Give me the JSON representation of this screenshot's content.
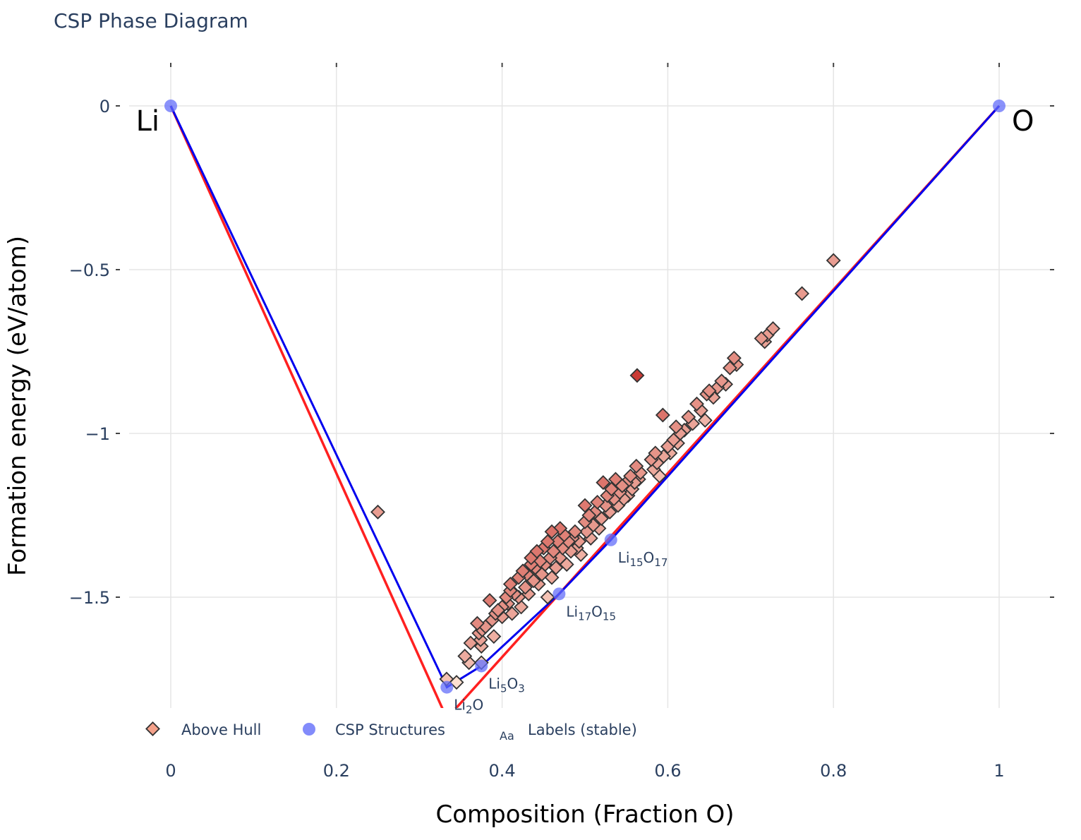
{
  "chart_data": {
    "type": "scatter",
    "title": "CSP Phase Diagram",
    "xlabel": "Composition (Fraction O)",
    "ylabel": "Formation energy (eV/atom)",
    "xlim": [
      -0.05,
      1.05
    ],
    "ylim": [
      -1.84,
      0.12
    ],
    "grid": true,
    "x_ticks": [
      0,
      0.2,
      0.4,
      0.6,
      0.8,
      1
    ],
    "x_tick_labels": [
      "0",
      "0.2",
      "0.4",
      "0.6",
      "0.8",
      "1"
    ],
    "y_ticks": [
      0,
      -0.5,
      -1,
      -1.5
    ],
    "y_tick_labels": [
      "0",
      "−0.5",
      "−1",
      "−1.5"
    ],
    "element_labels": [
      {
        "text": "Li",
        "x": 0,
        "y": 0,
        "side": "left"
      },
      {
        "text": "O",
        "x": 1,
        "y": 0,
        "side": "right"
      }
    ],
    "colors": {
      "hull_line": "#0000ee",
      "reference_line": "#ff2020",
      "csp_marker": "#636efa",
      "above_hull_light": "#fde0d0",
      "above_hull_dark": "#c0282a",
      "marker_outline": "#333333",
      "grid": "#e5e5e5",
      "text": "#2a3f5f"
    },
    "legend": {
      "position": "bottom-left",
      "items": [
        {
          "label": "Above Hull",
          "symbol": "diamond"
        },
        {
          "label": "CSP Structures",
          "symbol": "circle"
        },
        {
          "label": "Labels (stable)",
          "symbol": "Aa"
        }
      ]
    },
    "series": [
      {
        "name": "Hull (blue)",
        "kind": "line",
        "x": [
          0,
          0.3333,
          0.375,
          0.4688,
          0.5313,
          1
        ],
        "y": [
          0,
          -1.775,
          -1.71,
          -1.49,
          -1.325,
          0
        ]
      },
      {
        "name": "Reference hull (red)",
        "kind": "line",
        "x": [
          0,
          0.3333,
          1
        ],
        "y": [
          0,
          -1.87,
          0
        ]
      },
      {
        "name": "CSP Structures",
        "kind": "markers",
        "x": [
          0,
          0.3333,
          0.375,
          0.4688,
          0.5313,
          1
        ],
        "y": [
          0,
          -1.775,
          -1.71,
          -1.49,
          -1.325,
          0
        ]
      },
      {
        "name": "Labels (stable)",
        "kind": "text",
        "labels": [
          {
            "base": "Li",
            "sub1": "2",
            "mid": "O",
            "sub2": "",
            "x": 0.3333,
            "y": -1.775
          },
          {
            "base": "Li",
            "sub1": "5",
            "mid": "O",
            "sub2": "3",
            "x": 0.375,
            "y": -1.71
          },
          {
            "base": "Li",
            "sub1": "17",
            "mid": "O",
            "sub2": "15",
            "x": 0.4688,
            "y": -1.49
          },
          {
            "base": "Li",
            "sub1": "15",
            "mid": "O",
            "sub2": "17",
            "x": 0.5313,
            "y": -1.325
          }
        ]
      },
      {
        "name": "Above Hull",
        "kind": "diamonds",
        "points": [
          [
            0.25,
            -1.24
          ],
          [
            0.333,
            -1.75
          ],
          [
            0.345,
            -1.76
          ],
          [
            0.355,
            -1.68
          ],
          [
            0.36,
            -1.7
          ],
          [
            0.362,
            -1.64
          ],
          [
            0.37,
            -1.58
          ],
          [
            0.372,
            -1.61
          ],
          [
            0.374,
            -1.63
          ],
          [
            0.375,
            -1.65
          ],
          [
            0.376,
            -1.6
          ],
          [
            0.375,
            -1.7
          ],
          [
            0.38,
            -1.59
          ],
          [
            0.385,
            -1.51
          ],
          [
            0.388,
            -1.57
          ],
          [
            0.39,
            -1.62
          ],
          [
            0.392,
            -1.55
          ],
          [
            0.395,
            -1.54
          ],
          [
            0.4,
            -1.53
          ],
          [
            0.4,
            -1.56
          ],
          [
            0.405,
            -1.5
          ],
          [
            0.407,
            -1.52
          ],
          [
            0.41,
            -1.48
          ],
          [
            0.41,
            -1.46
          ],
          [
            0.412,
            -1.55
          ],
          [
            0.415,
            -1.49
          ],
          [
            0.42,
            -1.44
          ],
          [
            0.42,
            -1.5
          ],
          [
            0.423,
            -1.53
          ],
          [
            0.425,
            -1.42
          ],
          [
            0.428,
            -1.47
          ],
          [
            0.43,
            -1.43
          ],
          [
            0.432,
            -1.49
          ],
          [
            0.435,
            -1.4
          ],
          [
            0.435,
            -1.38
          ],
          [
            0.438,
            -1.45
          ],
          [
            0.44,
            -1.41
          ],
          [
            0.442,
            -1.36
          ],
          [
            0.444,
            -1.46
          ],
          [
            0.446,
            -1.39
          ],
          [
            0.448,
            -1.43
          ],
          [
            0.45,
            -1.35
          ],
          [
            0.452,
            -1.4
          ],
          [
            0.455,
            -1.33
          ],
          [
            0.455,
            -1.5
          ],
          [
            0.458,
            -1.38
          ],
          [
            0.46,
            -1.3
          ],
          [
            0.46,
            -1.44
          ],
          [
            0.462,
            -1.36
          ],
          [
            0.465,
            -1.41
          ],
          [
            0.467,
            -1.33
          ],
          [
            0.47,
            -1.29
          ],
          [
            0.47,
            -1.38
          ],
          [
            0.473,
            -1.35
          ],
          [
            0.475,
            -1.31
          ],
          [
            0.478,
            -1.4
          ],
          [
            0.48,
            -1.33
          ],
          [
            0.483,
            -1.36
          ],
          [
            0.485,
            -1.32
          ],
          [
            0.488,
            -1.3
          ],
          [
            0.49,
            -1.35
          ],
          [
            0.493,
            -1.33
          ],
          [
            0.495,
            -1.37
          ],
          [
            0.5,
            -1.22
          ],
          [
            0.5,
            -1.27
          ],
          [
            0.502,
            -1.3
          ],
          [
            0.505,
            -1.25
          ],
          [
            0.507,
            -1.32
          ],
          [
            0.51,
            -1.28
          ],
          [
            0.512,
            -1.24
          ],
          [
            0.515,
            -1.21
          ],
          [
            0.517,
            -1.29
          ],
          [
            0.52,
            -1.26
          ],
          [
            0.522,
            -1.15
          ],
          [
            0.525,
            -1.22
          ],
          [
            0.527,
            -1.19
          ],
          [
            0.53,
            -1.24
          ],
          [
            0.532,
            -1.17
          ],
          [
            0.535,
            -1.2
          ],
          [
            0.537,
            -1.14
          ],
          [
            0.54,
            -1.22
          ],
          [
            0.542,
            -1.18
          ],
          [
            0.545,
            -1.16
          ],
          [
            0.547,
            -1.2
          ],
          [
            0.55,
            -1.15
          ],
          [
            0.552,
            -1.19
          ],
          [
            0.555,
            -1.13
          ],
          [
            0.557,
            -1.17
          ],
          [
            0.56,
            -1.15
          ],
          [
            0.562,
            -1.1
          ],
          [
            0.563,
            -0.823
          ],
          [
            0.565,
            -1.14
          ],
          [
            0.567,
            -1.12
          ],
          [
            0.58,
            -1.08
          ],
          [
            0.583,
            -1.11
          ],
          [
            0.585,
            -1.06
          ],
          [
            0.587,
            -1.09
          ],
          [
            0.59,
            -1.13
          ],
          [
            0.594,
            -0.944
          ],
          [
            0.595,
            -1.07
          ],
          [
            0.6,
            -1.04
          ],
          [
            0.603,
            -1.06
          ],
          [
            0.607,
            -1.02
          ],
          [
            0.61,
            -0.98
          ],
          [
            0.612,
            -1.03
          ],
          [
            0.615,
            -1.0
          ],
          [
            0.62,
            -0.99
          ],
          [
            0.625,
            -0.95
          ],
          [
            0.63,
            -0.97
          ],
          [
            0.635,
            -0.91
          ],
          [
            0.64,
            -0.93
          ],
          [
            0.645,
            -0.96
          ],
          [
            0.647,
            -0.88
          ],
          [
            0.65,
            -0.87
          ],
          [
            0.655,
            -0.89
          ],
          [
            0.66,
            -0.86
          ],
          [
            0.665,
            -0.84
          ],
          [
            0.67,
            -0.85
          ],
          [
            0.675,
            -0.8
          ],
          [
            0.68,
            -0.77
          ],
          [
            0.683,
            -0.79
          ],
          [
            0.713,
            -0.71
          ],
          [
            0.717,
            -0.72
          ],
          [
            0.72,
            -0.7
          ],
          [
            0.727,
            -0.68
          ],
          [
            0.762,
            -0.573
          ],
          [
            0.8,
            -0.472
          ]
        ]
      }
    ]
  }
}
